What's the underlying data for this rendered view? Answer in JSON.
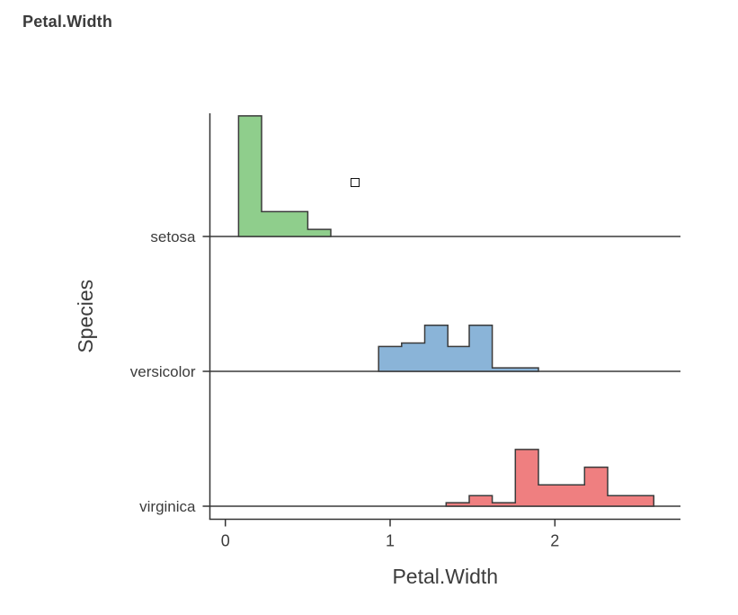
{
  "page": {
    "title": "Petal.Width"
  },
  "colors": {
    "background": "#ffffff",
    "outline": "#3a3a3a",
    "axis": "#333333",
    "text": "#3c3c3c",
    "title_text": "#3b3b3b"
  },
  "chart_data": {
    "type": "histogram-ridgeline",
    "title": "Petal.Width",
    "xlabel": "Petal.Width",
    "ylabel": "Species",
    "categories": [
      "setosa",
      "versicolor",
      "virginica"
    ],
    "x_ticks": [
      0,
      1,
      2
    ],
    "xlim": [
      -0.1,
      2.77
    ],
    "bin_width": 0.14,
    "grid": false,
    "legend": "none",
    "series": [
      {
        "name": "setosa",
        "fill": "#8fce8c",
        "edges": [
          0.08,
          0.22,
          0.36,
          0.5,
          0.64
        ],
        "counts": [
          34,
          7,
          7,
          2
        ]
      },
      {
        "name": "versicolor",
        "fill": "#8ab4d8",
        "edges": [
          0.93,
          1.07,
          1.21,
          1.35,
          1.48,
          1.62,
          1.76,
          1.9
        ],
        "counts": [
          7,
          8,
          13,
          7,
          13,
          1,
          1
        ]
      },
      {
        "name": "virginica",
        "fill": "#ef7f80",
        "edges": [
          1.34,
          1.48,
          1.62,
          1.76,
          1.9,
          2.04,
          2.18,
          2.32,
          2.46,
          2.6
        ],
        "counts": [
          1,
          3,
          1,
          16,
          6,
          6,
          11,
          3,
          3
        ]
      }
    ]
  }
}
